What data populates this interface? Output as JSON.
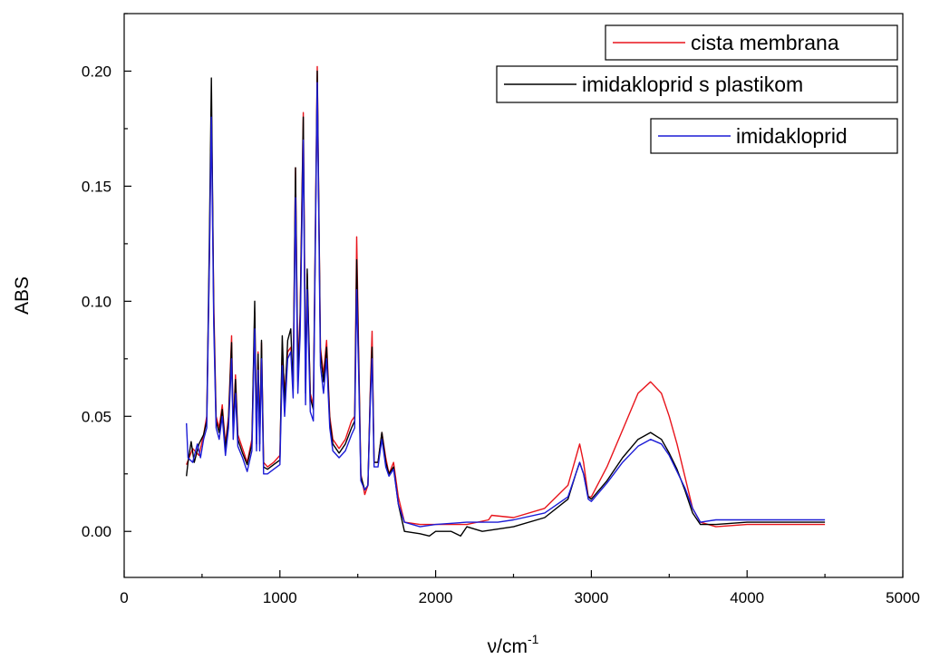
{
  "chart_data": {
    "type": "line",
    "title": "",
    "xlabel": "ν/cm",
    "xlabel_sup": "-1",
    "ylabel": "ABS",
    "xlim": [
      0,
      5000
    ],
    "ylim": [
      -0.02,
      0.225
    ],
    "xticks": [
      0,
      1000,
      2000,
      3000,
      4000,
      5000
    ],
    "yticks": [
      0.0,
      0.05,
      0.1,
      0.15,
      0.2
    ],
    "xtick_labels": [
      "0",
      "1000",
      "2000",
      "3000",
      "4000",
      "5000"
    ],
    "ytick_labels": [
      "0.00",
      "0.05",
      "0.10",
      "0.15",
      "0.20"
    ],
    "grid": false,
    "legend_position": "top-right",
    "series": [
      {
        "name": "cista membrana",
        "color": "#e8141b",
        "points": [
          [
            400,
            0.029
          ],
          [
            440,
            0.036
          ],
          [
            480,
            0.033
          ],
          [
            510,
            0.042
          ],
          [
            530,
            0.05
          ],
          [
            548,
            0.12
          ],
          [
            560,
            0.185
          ],
          [
            575,
            0.1
          ],
          [
            590,
            0.05
          ],
          [
            610,
            0.045
          ],
          [
            630,
            0.055
          ],
          [
            650,
            0.038
          ],
          [
            670,
            0.05
          ],
          [
            690,
            0.085
          ],
          [
            700,
            0.045
          ],
          [
            715,
            0.068
          ],
          [
            730,
            0.042
          ],
          [
            760,
            0.036
          ],
          [
            790,
            0.03
          ],
          [
            820,
            0.04
          ],
          [
            838,
            0.095
          ],
          [
            850,
            0.04
          ],
          [
            860,
            0.078
          ],
          [
            870,
            0.04
          ],
          [
            882,
            0.082
          ],
          [
            895,
            0.03
          ],
          [
            920,
            0.028
          ],
          [
            960,
            0.03
          ],
          [
            1000,
            0.033
          ],
          [
            1015,
            0.08
          ],
          [
            1030,
            0.06
          ],
          [
            1050,
            0.078
          ],
          [
            1070,
            0.08
          ],
          [
            1085,
            0.065
          ],
          [
            1100,
            0.158
          ],
          [
            1115,
            0.07
          ],
          [
            1130,
            0.095
          ],
          [
            1150,
            0.182
          ],
          [
            1165,
            0.065
          ],
          [
            1175,
            0.112
          ],
          [
            1195,
            0.06
          ],
          [
            1215,
            0.055
          ],
          [
            1240,
            0.202
          ],
          [
            1260,
            0.08
          ],
          [
            1280,
            0.068
          ],
          [
            1300,
            0.083
          ],
          [
            1320,
            0.05
          ],
          [
            1340,
            0.04
          ],
          [
            1380,
            0.036
          ],
          [
            1420,
            0.04
          ],
          [
            1460,
            0.048
          ],
          [
            1480,
            0.05
          ],
          [
            1493,
            0.128
          ],
          [
            1505,
            0.08
          ],
          [
            1520,
            0.025
          ],
          [
            1545,
            0.016
          ],
          [
            1565,
            0.02
          ],
          [
            1580,
            0.06
          ],
          [
            1592,
            0.087
          ],
          [
            1605,
            0.03
          ],
          [
            1630,
            0.03
          ],
          [
            1655,
            0.043
          ],
          [
            1680,
            0.032
          ],
          [
            1700,
            0.025
          ],
          [
            1730,
            0.03
          ],
          [
            1760,
            0.015
          ],
          [
            1800,
            0.004
          ],
          [
            1900,
            0.003
          ],
          [
            2000,
            0.003
          ],
          [
            2200,
            0.003
          ],
          [
            2340,
            0.005
          ],
          [
            2360,
            0.007
          ],
          [
            2500,
            0.006
          ],
          [
            2700,
            0.01
          ],
          [
            2850,
            0.02
          ],
          [
            2900,
            0.032
          ],
          [
            2925,
            0.038
          ],
          [
            2950,
            0.03
          ],
          [
            2980,
            0.015
          ],
          [
            3000,
            0.015
          ],
          [
            3100,
            0.028
          ],
          [
            3200,
            0.044
          ],
          [
            3300,
            0.06
          ],
          [
            3380,
            0.065
          ],
          [
            3450,
            0.06
          ],
          [
            3500,
            0.05
          ],
          [
            3550,
            0.038
          ],
          [
            3600,
            0.024
          ],
          [
            3650,
            0.01
          ],
          [
            3700,
            0.004
          ],
          [
            3800,
            0.002
          ],
          [
            4000,
            0.003
          ],
          [
            4500,
            0.003
          ]
        ]
      },
      {
        "name": "imidakloprid s plastikom",
        "color": "#000000",
        "points": [
          [
            400,
            0.024
          ],
          [
            410,
            0.03
          ],
          [
            430,
            0.039
          ],
          [
            450,
            0.03
          ],
          [
            480,
            0.038
          ],
          [
            510,
            0.042
          ],
          [
            530,
            0.048
          ],
          [
            548,
            0.13
          ],
          [
            560,
            0.197
          ],
          [
            575,
            0.095
          ],
          [
            590,
            0.048
          ],
          [
            610,
            0.043
          ],
          [
            630,
            0.053
          ],
          [
            650,
            0.036
          ],
          [
            670,
            0.048
          ],
          [
            690,
            0.082
          ],
          [
            700,
            0.043
          ],
          [
            715,
            0.066
          ],
          [
            730,
            0.04
          ],
          [
            760,
            0.034
          ],
          [
            790,
            0.029
          ],
          [
            820,
            0.038
          ],
          [
            838,
            0.1
          ],
          [
            850,
            0.038
          ],
          [
            860,
            0.077
          ],
          [
            870,
            0.038
          ],
          [
            882,
            0.083
          ],
          [
            895,
            0.028
          ],
          [
            920,
            0.027
          ],
          [
            960,
            0.029
          ],
          [
            1000,
            0.031
          ],
          [
            1015,
            0.085
          ],
          [
            1030,
            0.055
          ],
          [
            1050,
            0.083
          ],
          [
            1070,
            0.088
          ],
          [
            1085,
            0.062
          ],
          [
            1100,
            0.158
          ],
          [
            1115,
            0.065
          ],
          [
            1130,
            0.092
          ],
          [
            1150,
            0.18
          ],
          [
            1165,
            0.06
          ],
          [
            1175,
            0.114
          ],
          [
            1195,
            0.058
          ],
          [
            1215,
            0.053
          ],
          [
            1240,
            0.2
          ],
          [
            1260,
            0.078
          ],
          [
            1280,
            0.065
          ],
          [
            1300,
            0.08
          ],
          [
            1320,
            0.048
          ],
          [
            1340,
            0.038
          ],
          [
            1380,
            0.034
          ],
          [
            1420,
            0.038
          ],
          [
            1460,
            0.045
          ],
          [
            1480,
            0.048
          ],
          [
            1493,
            0.118
          ],
          [
            1505,
            0.075
          ],
          [
            1520,
            0.024
          ],
          [
            1545,
            0.018
          ],
          [
            1565,
            0.02
          ],
          [
            1580,
            0.058
          ],
          [
            1592,
            0.08
          ],
          [
            1605,
            0.03
          ],
          [
            1630,
            0.03
          ],
          [
            1655,
            0.043
          ],
          [
            1680,
            0.03
          ],
          [
            1700,
            0.025
          ],
          [
            1730,
            0.028
          ],
          [
            1760,
            0.012
          ],
          [
            1800,
            0.0
          ],
          [
            1900,
            -0.001
          ],
          [
            1960,
            -0.002
          ],
          [
            2000,
            0.0
          ],
          [
            2100,
            0.0
          ],
          [
            2160,
            -0.002
          ],
          [
            2200,
            0.002
          ],
          [
            2300,
            0.0
          ],
          [
            2500,
            0.002
          ],
          [
            2700,
            0.006
          ],
          [
            2850,
            0.014
          ],
          [
            2900,
            0.025
          ],
          [
            2925,
            0.03
          ],
          [
            2950,
            0.025
          ],
          [
            2980,
            0.015
          ],
          [
            3000,
            0.014
          ],
          [
            3100,
            0.022
          ],
          [
            3200,
            0.032
          ],
          [
            3300,
            0.04
          ],
          [
            3380,
            0.043
          ],
          [
            3450,
            0.04
          ],
          [
            3500,
            0.034
          ],
          [
            3550,
            0.027
          ],
          [
            3600,
            0.018
          ],
          [
            3650,
            0.008
          ],
          [
            3700,
            0.003
          ],
          [
            3800,
            0.003
          ],
          [
            4000,
            0.004
          ],
          [
            4500,
            0.004
          ]
        ]
      },
      {
        "name": "imidakloprid",
        "color": "#1c1cd6",
        "points": [
          [
            400,
            0.047
          ],
          [
            410,
            0.032
          ],
          [
            440,
            0.03
          ],
          [
            470,
            0.038
          ],
          [
            490,
            0.032
          ],
          [
            510,
            0.04
          ],
          [
            530,
            0.045
          ],
          [
            548,
            0.12
          ],
          [
            560,
            0.18
          ],
          [
            575,
            0.09
          ],
          [
            590,
            0.045
          ],
          [
            610,
            0.04
          ],
          [
            630,
            0.05
          ],
          [
            650,
            0.033
          ],
          [
            670,
            0.045
          ],
          [
            690,
            0.075
          ],
          [
            700,
            0.04
          ],
          [
            715,
            0.06
          ],
          [
            730,
            0.037
          ],
          [
            760,
            0.032
          ],
          [
            790,
            0.026
          ],
          [
            820,
            0.035
          ],
          [
            838,
            0.088
          ],
          [
            850,
            0.035
          ],
          [
            860,
            0.07
          ],
          [
            870,
            0.035
          ],
          [
            882,
            0.075
          ],
          [
            895,
            0.025
          ],
          [
            920,
            0.025
          ],
          [
            960,
            0.027
          ],
          [
            1000,
            0.029
          ],
          [
            1015,
            0.072
          ],
          [
            1030,
            0.05
          ],
          [
            1050,
            0.075
          ],
          [
            1070,
            0.078
          ],
          [
            1085,
            0.058
          ],
          [
            1100,
            0.145
          ],
          [
            1115,
            0.06
          ],
          [
            1130,
            0.085
          ],
          [
            1150,
            0.17
          ],
          [
            1165,
            0.055
          ],
          [
            1175,
            0.105
          ],
          [
            1195,
            0.052
          ],
          [
            1215,
            0.048
          ],
          [
            1240,
            0.195
          ],
          [
            1260,
            0.072
          ],
          [
            1280,
            0.06
          ],
          [
            1300,
            0.075
          ],
          [
            1320,
            0.045
          ],
          [
            1340,
            0.035
          ],
          [
            1380,
            0.032
          ],
          [
            1420,
            0.035
          ],
          [
            1460,
            0.042
          ],
          [
            1480,
            0.045
          ],
          [
            1493,
            0.105
          ],
          [
            1505,
            0.07
          ],
          [
            1520,
            0.022
          ],
          [
            1545,
            0.018
          ],
          [
            1565,
            0.02
          ],
          [
            1580,
            0.055
          ],
          [
            1592,
            0.075
          ],
          [
            1605,
            0.028
          ],
          [
            1630,
            0.028
          ],
          [
            1655,
            0.04
          ],
          [
            1680,
            0.028
          ],
          [
            1700,
            0.024
          ],
          [
            1730,
            0.027
          ],
          [
            1760,
            0.012
          ],
          [
            1800,
            0.004
          ],
          [
            1900,
            0.002
          ],
          [
            2000,
            0.003
          ],
          [
            2200,
            0.004
          ],
          [
            2400,
            0.004
          ],
          [
            2500,
            0.005
          ],
          [
            2700,
            0.008
          ],
          [
            2850,
            0.015
          ],
          [
            2900,
            0.025
          ],
          [
            2925,
            0.03
          ],
          [
            2950,
            0.025
          ],
          [
            2980,
            0.014
          ],
          [
            3000,
            0.013
          ],
          [
            3100,
            0.021
          ],
          [
            3200,
            0.03
          ],
          [
            3300,
            0.037
          ],
          [
            3380,
            0.04
          ],
          [
            3450,
            0.038
          ],
          [
            3500,
            0.033
          ],
          [
            3550,
            0.026
          ],
          [
            3600,
            0.019
          ],
          [
            3650,
            0.01
          ],
          [
            3700,
            0.004
          ],
          [
            3800,
            0.005
          ],
          [
            4000,
            0.005
          ],
          [
            4500,
            0.005
          ]
        ]
      }
    ]
  }
}
